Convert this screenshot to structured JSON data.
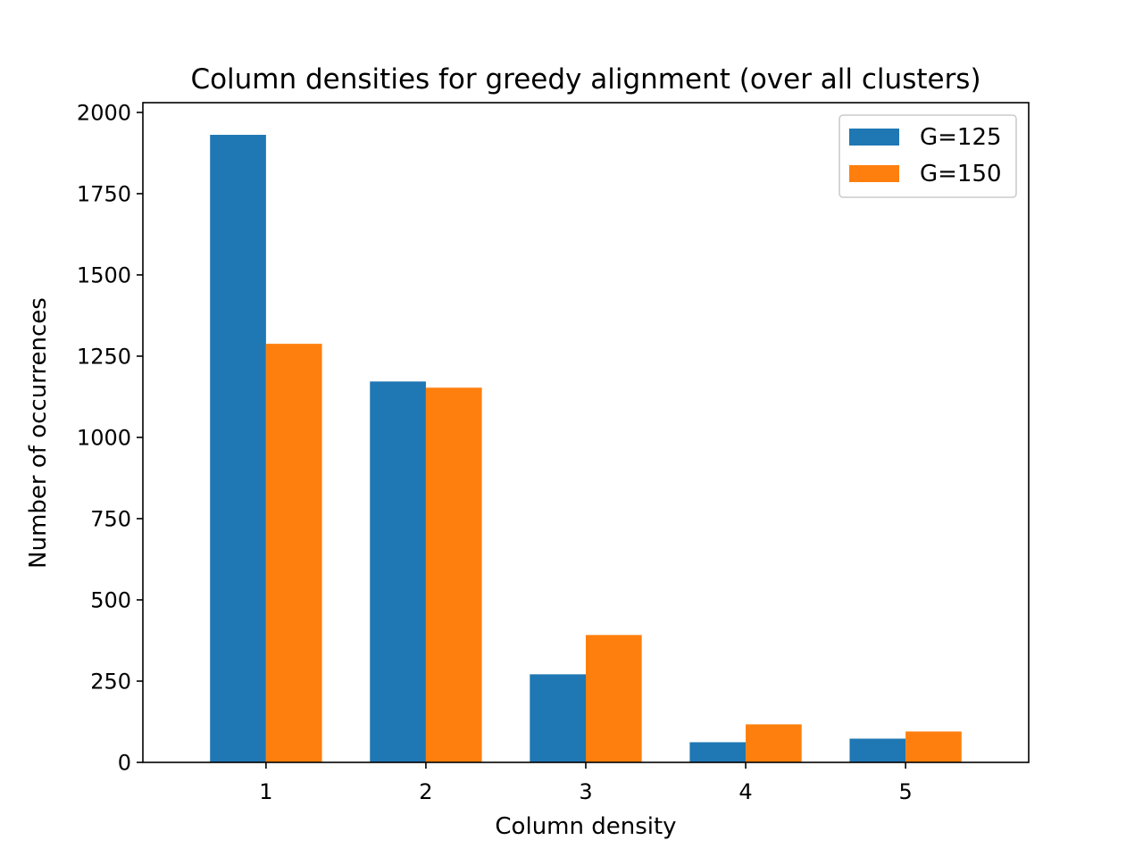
{
  "chart_data": {
    "type": "bar",
    "title": "Column densities for greedy alignment (over all clusters)",
    "xlabel": "Column density",
    "ylabel": "Number of occurrences",
    "categories": [
      "1",
      "2",
      "3",
      "4",
      "5"
    ],
    "series": [
      {
        "name": "G=125",
        "color": "#1f77b4",
        "values": [
          1931,
          1172,
          271,
          62,
          73
        ]
      },
      {
        "name": "G=150",
        "color": "#ff7f0e",
        "values": [
          1288,
          1153,
          392,
          117,
          95
        ]
      }
    ],
    "ylim": [
      0,
      2030
    ],
    "yticks": [
      0,
      250,
      500,
      750,
      1000,
      1250,
      1500,
      1750,
      2000
    ],
    "grid": false,
    "legend_position": "top-right"
  }
}
